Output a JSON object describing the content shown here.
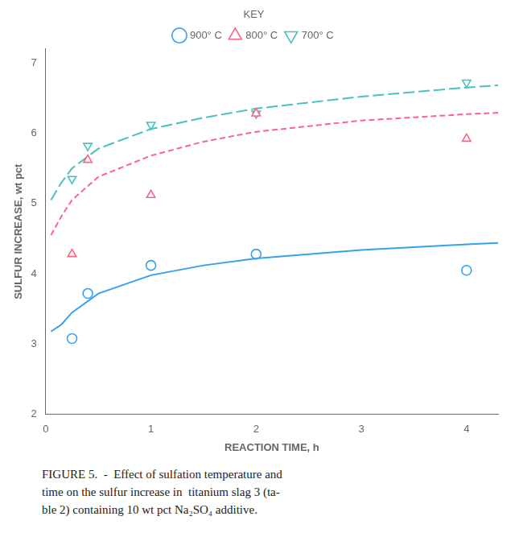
{
  "chart_data": {
    "type": "line",
    "x_label": "REACTION TIME, h",
    "y_label": "SULFUR INCREASE, wt pct",
    "xlim": [
      0,
      4.3
    ],
    "ylim": [
      2,
      7.2
    ],
    "xticks": [
      0,
      1,
      2,
      3,
      4
    ],
    "yticks": [
      2,
      3,
      4,
      5,
      6,
      7
    ],
    "grid": false,
    "legend": "top",
    "legend_title": "KEY",
    "series": [
      {
        "name": "900° C",
        "color": "#36a2eb",
        "marker": "circle",
        "line_style": "solid",
        "x": [
          0.25,
          0.4,
          1.0,
          2.0,
          4.0
        ],
        "values": [
          3.08,
          3.72,
          4.12,
          4.28,
          4.05
        ],
        "curve_x": [
          0.05,
          0.15,
          0.25,
          0.5,
          1.0,
          1.5,
          2.0,
          3.0,
          4.0,
          4.3
        ],
        "curve_values": [
          3.18,
          3.28,
          3.45,
          3.72,
          3.98,
          4.12,
          4.22,
          4.34,
          4.42,
          4.44
        ]
      },
      {
        "name": "800° C",
        "color": "#ff6384",
        "marker": "triangle_up",
        "line_style": "dashed",
        "x": [
          0.25,
          0.4,
          1.0,
          2.0,
          4.0
        ],
        "values": [
          4.28,
          5.62,
          5.12,
          6.28,
          5.92
        ],
        "curve_x": [
          0.05,
          0.15,
          0.25,
          0.5,
          1.0,
          1.5,
          2.0,
          3.0,
          4.0,
          4.3
        ],
        "curve_values": [
          4.55,
          4.82,
          5.05,
          5.38,
          5.68,
          5.88,
          6.02,
          6.18,
          6.27,
          6.29
        ]
      },
      {
        "name": "700° C",
        "color": "#4bc0c0",
        "marker": "triangle_down",
        "line_style": "long_dashed",
        "x": [
          0.25,
          0.4,
          1.0,
          2.0,
          4.0
        ],
        "values": [
          5.35,
          5.82,
          6.12,
          6.28,
          6.72
        ],
        "curve_x": [
          0.05,
          0.15,
          0.25,
          0.5,
          1.0,
          1.5,
          2.0,
          3.0,
          4.0,
          4.3
        ],
        "curve_values": [
          5.05,
          5.3,
          5.5,
          5.78,
          6.06,
          6.22,
          6.35,
          6.52,
          6.65,
          6.68
        ]
      }
    ],
    "caption": [
      "FIGURE 5.  -  Effect of sulfation temperature and",
      "time on the sulfur increase in  titanium slag 3 (ta-",
      "ble 2) containing 10 wt pct Na₂SO₄ additive."
    ]
  }
}
